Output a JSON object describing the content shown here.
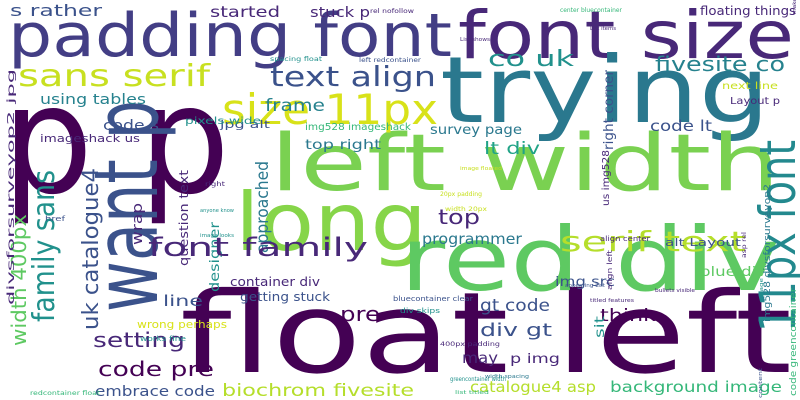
{
  "words": [
    "p p",
    "want p",
    "float left",
    "padding font",
    "font size",
    "trying",
    "left width",
    "long",
    "red div",
    "11px font",
    "sans serif",
    "text align",
    "size 11px",
    "s rather",
    "started",
    "stuck p",
    "floating things",
    "co uk",
    "fivesite co",
    "using tables",
    "frame",
    "code s",
    "jpg alt",
    "imageshack us",
    "pixels wide",
    "img528 imageshack",
    "survey page",
    "code lt",
    "top right",
    "lt div",
    "question text",
    "uk catalogue4",
    "family sans",
    "width 400px",
    "divsforsurveyop2 jpg",
    "wrap",
    "approached",
    "designer",
    "serif text",
    "programmer",
    "top",
    "font family",
    "container div",
    "getting stuck",
    "line",
    "setting",
    "code pre",
    "embrace code",
    "biochrom fivesite",
    "wrong perhaps",
    "pre",
    "gt code",
    "think",
    "div gt",
    "may",
    "p img",
    "img src",
    "alt Layout",
    "blue div",
    "catalogue4 asp",
    "background image",
    "code greencontainer",
    "img528 divsforsurveyop2",
    "Layout p",
    "next line",
    "right corner",
    "us img528",
    "center bluecontainer",
    "left redcontainer",
    "rel nofollow",
    "spacing float",
    "href",
    "List items",
    "List shows",
    "image floated",
    "20px padding",
    "width 20px",
    "align center",
    "align left",
    "right",
    "anyone know",
    "image looks",
    "appearing List",
    "bluecontainer clear",
    "div skips",
    "sit",
    "greencontainer width",
    "width spacing",
    "400px padding",
    "works fine",
    "redcontainer float",
    "bullets visible",
    "titled features",
    "list titled",
    "asp rel",
    "page",
    "make",
    "content"
  ]
}
